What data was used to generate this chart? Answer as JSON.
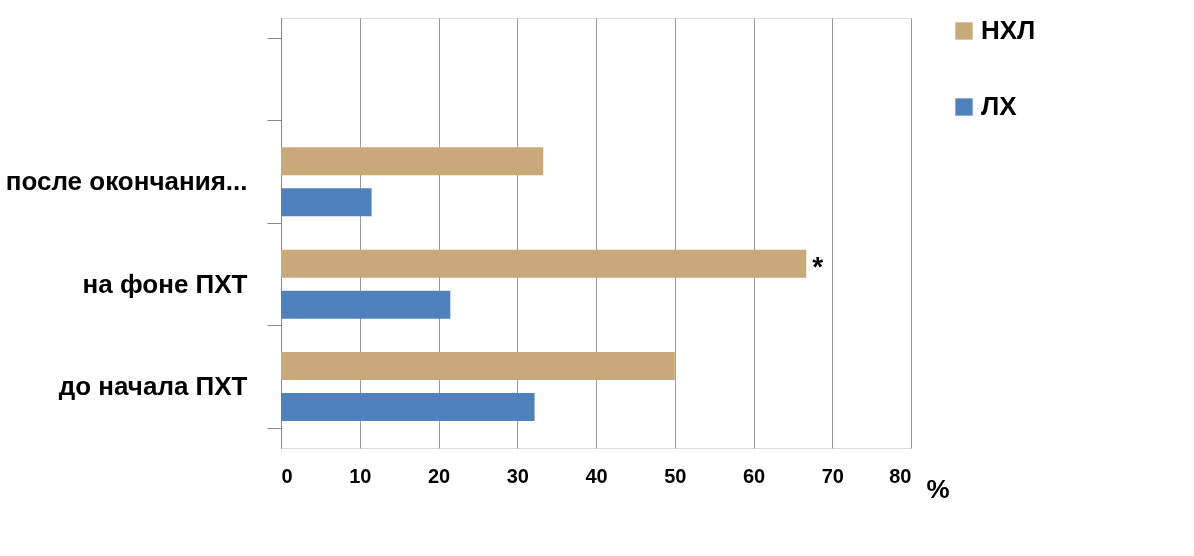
{
  "chart_data": {
    "type": "bar",
    "orientation": "horizontal",
    "categories": [
      null,
      "после окончания...",
      "на фоне ПХТ",
      "до начала ПХТ"
    ],
    "series": [
      {
        "name": "НХЛ",
        "color": "#c9a87a",
        "values": [
          null,
          33.3,
          66.7,
          50
        ]
      },
      {
        "name": "ЛХ",
        "color": "#4f81bd",
        "values": [
          null,
          11.5,
          21.5,
          32.2
        ]
      }
    ],
    "xlabel": "%",
    "xlim": [
      0,
      80
    ],
    "xticks": [
      0,
      10,
      20,
      30,
      40,
      50,
      60,
      70,
      80
    ],
    "grid": "x",
    "legend": "right",
    "annotations": [
      "*"
    ]
  }
}
